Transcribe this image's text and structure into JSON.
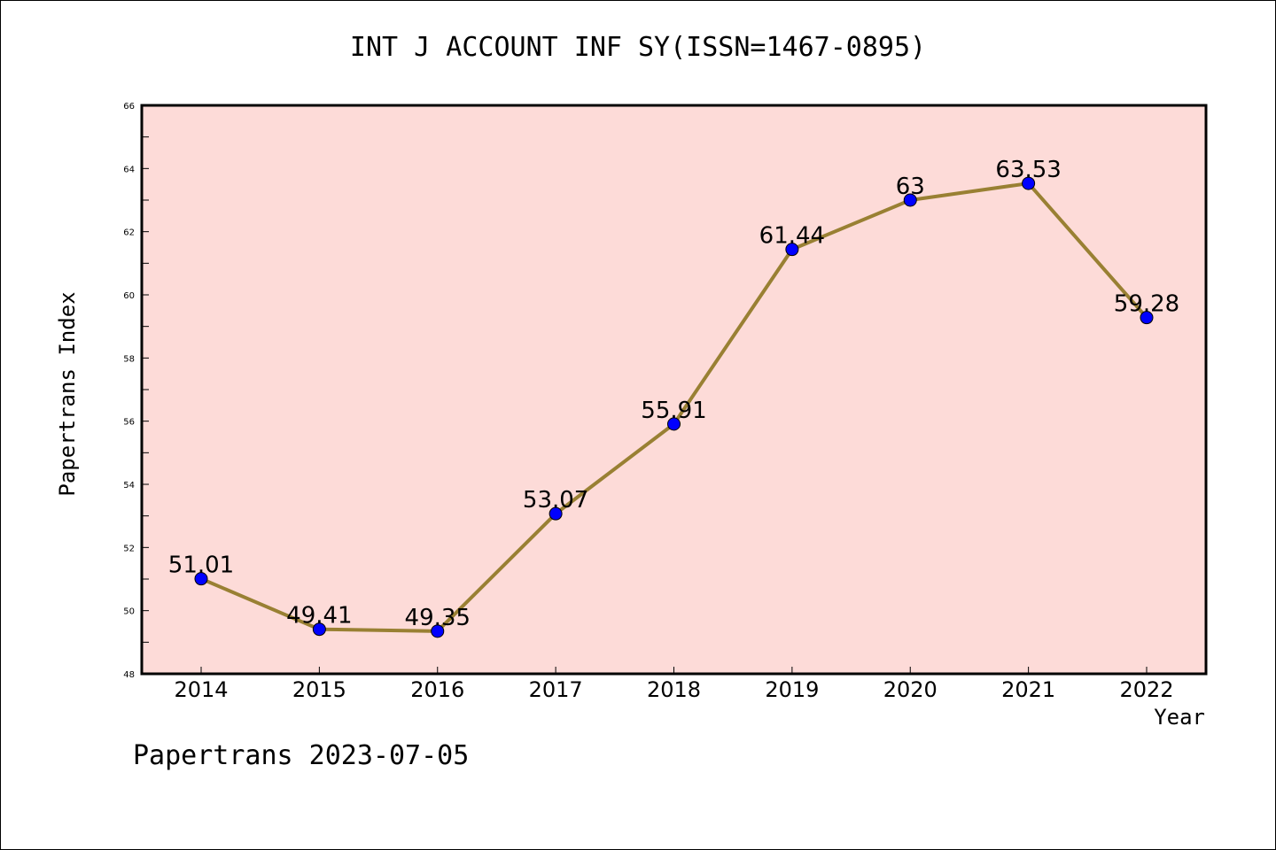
{
  "chart_data": {
    "type": "line",
    "title": "INT J ACCOUNT INF SY(ISSN=1467-0895)",
    "xlabel": "Year",
    "ylabel": "Papertrans Index",
    "categories": [
      "2014",
      "2015",
      "2016",
      "2017",
      "2018",
      "2019",
      "2020",
      "2021",
      "2022"
    ],
    "values": [
      51.01,
      49.41,
      49.35,
      53.07,
      55.91,
      61.44,
      63,
      63.53,
      59.28
    ],
    "data_labels": [
      "51.01",
      "49.41",
      "49.35",
      "53.07",
      "55.91",
      "61.44",
      "63",
      "63.53",
      "59.28"
    ],
    "y_ticks": [
      "48",
      "50",
      "52",
      "54",
      "56",
      "58",
      "60",
      "62",
      "64",
      "66"
    ],
    "ylim": [
      48,
      66
    ],
    "grid": false,
    "colors": {
      "plot_background": "#fddbd8",
      "line": "#998033",
      "marker": "#0000ff"
    }
  },
  "footer": "Papertrans 2023-07-05"
}
